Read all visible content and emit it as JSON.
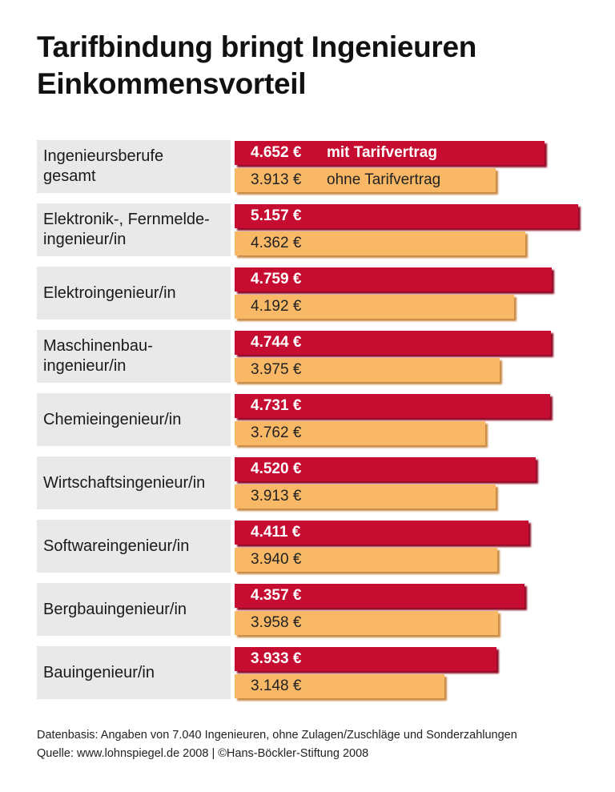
{
  "chart_data": {
    "type": "bar",
    "orientation": "horizontal",
    "title": "Tarifbindung bringt Ingenieuren Einkommensvorteil",
    "categories": [
      "Ingenieursberufe\ngesamt",
      "Elektronik-, Fernmelde-\ningenieur/in",
      "Elektroingenieur/in",
      "Maschinenbau-\ningenieur/in",
      "Chemieingenieur/in",
      "Wirtschaftsingenieur/in",
      "Softwareingenieur/in",
      "Bergbauingenieur/in",
      "Bauingenieur/in"
    ],
    "series": [
      {
        "name": "mit Tarifvertrag",
        "color": "#c60c30",
        "values": [
          4652,
          5157,
          4759,
          4744,
          4731,
          4520,
          4411,
          4357,
          3933
        ],
        "labels": [
          "4.652 €",
          "5.157 €",
          "4.759 €",
          "4.744 €",
          "4.731 €",
          "4.520 €",
          "4.411 €",
          "4.357 €",
          "3.933 €"
        ]
      },
      {
        "name": "ohne Tarifvertrag",
        "color": "#f9b866",
        "values": [
          3913,
          4362,
          4192,
          3975,
          3762,
          3913,
          3940,
          3958,
          3148
        ],
        "labels": [
          "3.913 €",
          "4.362 €",
          "4.192 €",
          "3.975 €",
          "3.762 €",
          "3.913 €",
          "3.940 €",
          "3.958 €",
          "3.148 €"
        ]
      }
    ],
    "xlim": [
      0,
      5157
    ],
    "unit": "€",
    "grid": false,
    "legend": "inline in first bar pair"
  },
  "footer": {
    "note": "Datenbasis: Angaben von 7.040 Ingenieuren, ohne Zulagen/Zuschläge und Sonderzahlungen",
    "source": "Quelle: www.lohnspiegel.de 2008 | ©Hans-Böckler-Stiftung 2008"
  }
}
